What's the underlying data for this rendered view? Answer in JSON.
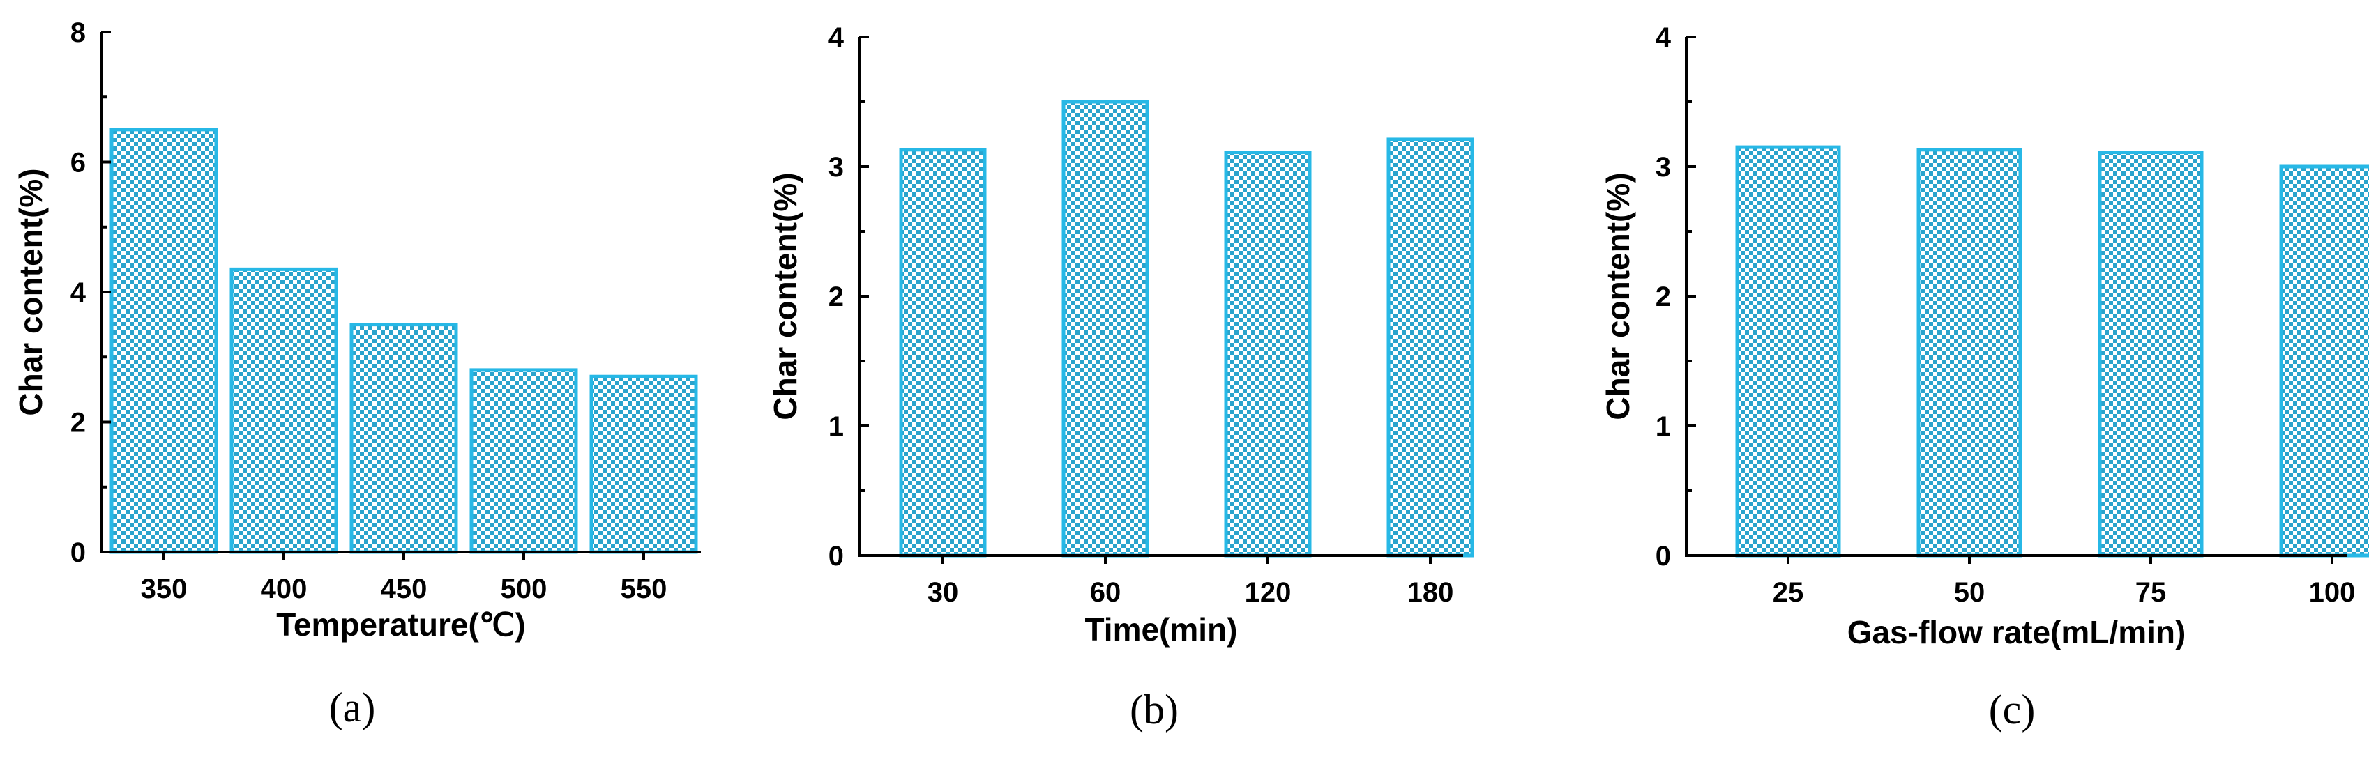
{
  "chart_data": [
    {
      "type": "bar",
      "panel": "(a)",
      "categories": [
        "350",
        "400",
        "450",
        "500",
        "550"
      ],
      "values": [
        6.5,
        4.35,
        3.5,
        2.8,
        2.7
      ],
      "xlabel": "Temperature(℃)",
      "ylabel": "Char content(%)",
      "ylim": [
        0,
        8
      ],
      "yticks": [
        "0",
        "2",
        "4",
        "6",
        "8"
      ],
      "grid": false
    },
    {
      "type": "bar",
      "panel": "(b)",
      "categories": [
        "30",
        "60",
        "120",
        "180"
      ],
      "values": [
        3.13,
        3.5,
        3.11,
        3.21
      ],
      "xlabel": "Time(min)",
      "ylabel": "Char content(%)",
      "ylim": [
        0,
        4
      ],
      "yticks": [
        "0",
        "1",
        "2",
        "3",
        "4"
      ],
      "grid": false
    },
    {
      "type": "bar",
      "panel": "(c)",
      "categories": [
        "25",
        "50",
        "75",
        "100"
      ],
      "values": [
        3.15,
        3.13,
        3.11,
        3.0
      ],
      "xlabel": "Gas-flow rate(mL/min)",
      "ylabel": "Char content(%)",
      "ylim": [
        0,
        4
      ],
      "yticks": [
        "0",
        "1",
        "2",
        "3",
        "4"
      ],
      "grid": false
    }
  ],
  "colors": {
    "bar_edge": "#27b8e6",
    "bar_pattern": "#2aa3cc",
    "axis": "#000000"
  }
}
